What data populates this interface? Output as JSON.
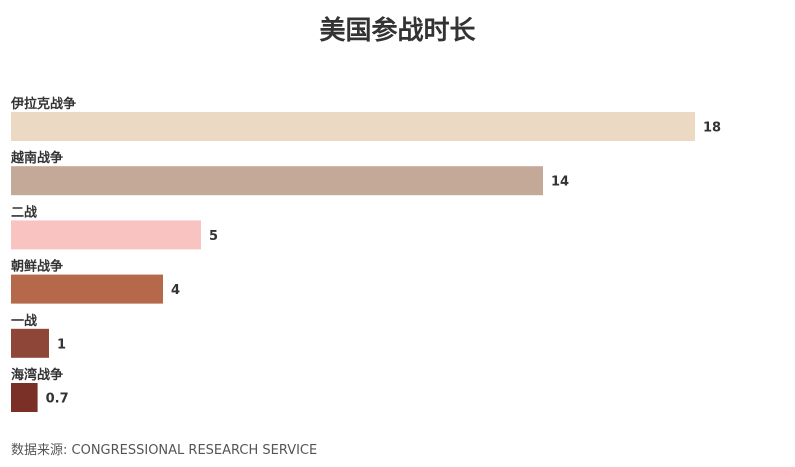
{
  "title": "美国参战时长",
  "source": "数据来源: CONGRESSIONAL RESEARCH SERVICE",
  "chart_data": {
    "type": "bar",
    "orientation": "horizontal",
    "title": "美国参战时长",
    "categories": [
      "伊拉克战争",
      "越南战争",
      "二战",
      "朝鲜战争",
      "一战",
      "海湾战争"
    ],
    "values": [
      18,
      14,
      5,
      4,
      1,
      0.7
    ],
    "value_labels": [
      "18",
      "14",
      "5",
      "4",
      "1",
      "0.7"
    ],
    "colors": [
      "#ecd9c3",
      "#c4a898",
      "#f9c3c2",
      "#b5684a",
      "#8e4639",
      "#7a2f27"
    ],
    "xlim": [
      0,
      18
    ],
    "grid": false,
    "legend": "none"
  }
}
